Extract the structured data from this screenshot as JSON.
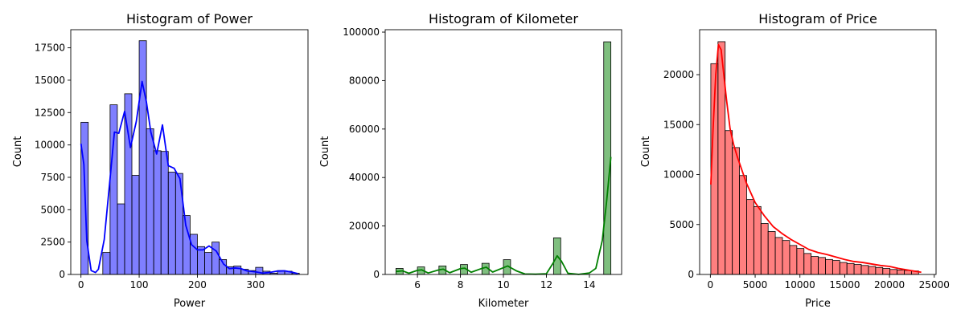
{
  "chart_data": [
    {
      "type": "bar",
      "title": "Histogram of Power",
      "xlabel": "Power",
      "ylabel": "Count",
      "color": "#0000ff",
      "kde": true,
      "xlim": [
        -17.5,
        390
      ],
      "ylim": [
        0,
        18900
      ],
      "xticks": [
        0,
        100,
        200,
        300
      ],
      "yticks": [
        0,
        2500,
        5000,
        7500,
        10000,
        12500,
        15000,
        17500
      ],
      "bin_start": 0,
      "bin_width": 12.5,
      "values": [
        11750,
        0,
        0,
        1700,
        13100,
        5450,
        13950,
        7650,
        18050,
        11250,
        9550,
        9500,
        7900,
        7800,
        4550,
        3100,
        2150,
        1700,
        2500,
        1150,
        600,
        650,
        400,
        300,
        550,
        250,
        100,
        300,
        250,
        100
      ],
      "kde_x": [
        0,
        5,
        10,
        17.5,
        25,
        30,
        40,
        50,
        57.5,
        65,
        75,
        85,
        95,
        105,
        112.5,
        120,
        130,
        140,
        150,
        160,
        170,
        180,
        190,
        200,
        210,
        220,
        232.5,
        245,
        255,
        265,
        275,
        285,
        300,
        312.5,
        325,
        337.5,
        350,
        362.5,
        372.5
      ],
      "kde_y": [
        10100,
        8500,
        2600,
        300,
        150,
        400,
        2700,
        7400,
        11000,
        10900,
        12600,
        9800,
        11800,
        14900,
        13300,
        11000,
        9300,
        11550,
        8400,
        8200,
        7400,
        3800,
        2300,
        1900,
        1900,
        2200,
        1800,
        800,
        450,
        500,
        450,
        280,
        200,
        100,
        160,
        260,
        280,
        180,
        60
      ]
    },
    {
      "type": "bar",
      "title": "Histogram of Kilometer",
      "xlabel": "Kilometer",
      "ylabel": "Count",
      "color": "#008000",
      "kde": true,
      "xlim": [
        4.5,
        15.5
      ],
      "ylim": [
        0,
        101000
      ],
      "xticks": [
        6,
        8,
        10,
        12,
        14
      ],
      "yticks": [
        0,
        20000,
        40000,
        60000,
        80000,
        100000
      ],
      "bins": [
        {
          "x0": 5.0,
          "x1": 5.333,
          "count": 2500
        },
        {
          "x0": 6.0,
          "x1": 6.333,
          "count": 3100
        },
        {
          "x0": 7.0,
          "x1": 7.333,
          "count": 3500
        },
        {
          "x0": 8.0,
          "x1": 8.333,
          "count": 4100
        },
        {
          "x0": 9.0,
          "x1": 9.333,
          "count": 4600
        },
        {
          "x0": 10.0,
          "x1": 10.333,
          "count": 6100
        },
        {
          "x0": 12.333,
          "x1": 12.667,
          "count": 15100
        },
        {
          "x0": 14.667,
          "x1": 15.0,
          "count": 96000
        }
      ],
      "kde_x": [
        5,
        5.3,
        5.6,
        6,
        6.2,
        6.5,
        7,
        7.2,
        7.5,
        8,
        8.2,
        8.5,
        9,
        9.2,
        9.5,
        10,
        10.2,
        10.6,
        11,
        11.5,
        12,
        12.3,
        12.5,
        12.7,
        13,
        13.5,
        14,
        14.3,
        14.6,
        14.8,
        15
      ],
      "kde_y": [
        1200,
        1500,
        500,
        1700,
        1900,
        600,
        1900,
        2200,
        700,
        2400,
        2600,
        900,
        2500,
        3000,
        1000,
        2800,
        3500,
        1500,
        200,
        100,
        300,
        4500,
        7700,
        5500,
        500,
        50,
        600,
        2500,
        14000,
        30000,
        48500
      ]
    },
    {
      "type": "bar",
      "title": "Histogram of Price",
      "xlabel": "Price",
      "ylabel": "Count",
      "color": "#ff0000",
      "kde": true,
      "xlim": [
        -1200,
        25200
      ],
      "ylim": [
        0,
        24500
      ],
      "xticks": [
        0,
        5000,
        10000,
        15000,
        20000,
        25000
      ],
      "yticks": [
        0,
        5000,
        10000,
        15000,
        20000
      ],
      "bin_start": 50,
      "bin_width": 800,
      "values": [
        21100,
        23300,
        14400,
        12700,
        9900,
        7500,
        6800,
        5100,
        4300,
        3700,
        3400,
        2900,
        2600,
        2100,
        1800,
        1700,
        1500,
        1400,
        1200,
        1100,
        1000,
        900,
        800,
        700,
        600,
        500,
        450,
        400,
        350
      ],
      "kde_x": [
        50,
        300,
        600,
        900,
        1200,
        1500,
        1800,
        2200,
        2600,
        3000,
        3500,
        4000,
        5000,
        6000,
        7000,
        8000,
        9000,
        10000,
        11000,
        12000,
        13000,
        14000,
        15000,
        16000,
        17000,
        18000,
        19000,
        20000,
        21000,
        22000,
        23000,
        23550
      ],
      "kde_y": [
        9000,
        14500,
        20000,
        23000,
        22500,
        20000,
        17500,
        14600,
        13000,
        11800,
        10500,
        9200,
        7200,
        5900,
        4800,
        4100,
        3500,
        3000,
        2500,
        2200,
        2000,
        1750,
        1500,
        1300,
        1200,
        1050,
        900,
        800,
        600,
        450,
        300,
        220
      ]
    }
  ]
}
